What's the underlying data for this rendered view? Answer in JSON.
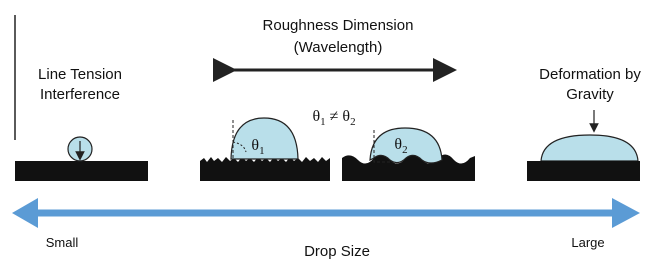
{
  "header": {
    "title_lines": [
      "Roughness Dimension",
      "(Wavelength)"
    ]
  },
  "left_panel": {
    "label_lines": [
      "Line Tension",
      "Interference"
    ]
  },
  "right_panel": {
    "label_lines": [
      "Deformation by",
      "Gravity"
    ]
  },
  "inequality": [
    "θ",
    "1",
    " ≠ ",
    "θ",
    "2"
  ],
  "angle_1": [
    "θ",
    "1"
  ],
  "angle_2": [
    "θ",
    "2"
  ],
  "axis": {
    "label": "Drop Size",
    "left_end": "Small",
    "right_end": "Large"
  }
}
